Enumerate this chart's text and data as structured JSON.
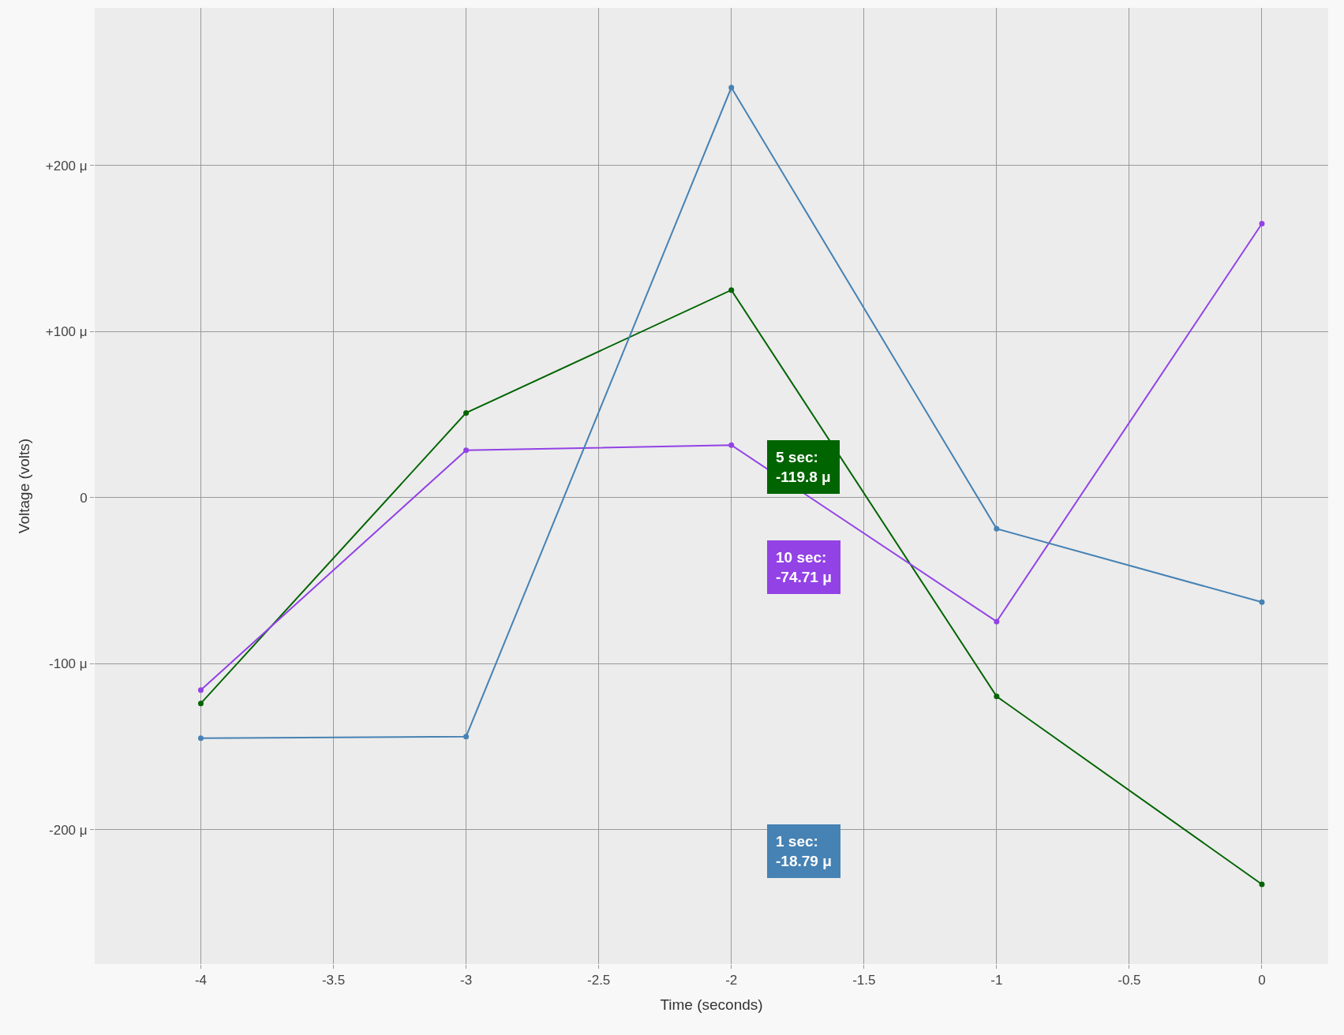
{
  "chart_data": {
    "type": "line",
    "xlabel": "Time (seconds)",
    "ylabel": "Voltage (volts)",
    "x": [
      -4,
      -3,
      -2,
      -1,
      0
    ],
    "series": [
      {
        "color": "#006400",
        "values": [
          -124,
          51,
          125,
          -119.8,
          -233
        ]
      },
      {
        "color": "#9342e6",
        "values": [
          -116,
          28.5,
          31.6,
          -74.71,
          165
        ]
      },
      {
        "color": "#4682b4",
        "values": [
          -145,
          -144,
          247,
          -18.79,
          -63
        ]
      }
    ],
    "xlim": [
      -4.4,
      0.25
    ],
    "xticks": [
      -4,
      -3.5,
      -3,
      -2.5,
      -2,
      -1.5,
      -1,
      -0.5,
      0
    ],
    "ylim": [
      -281,
      295
    ],
    "yticks": [
      {
        "value": -200,
        "label": "-200 μ"
      },
      {
        "value": -100,
        "label": "-100 μ"
      },
      0,
      {
        "value": 100,
        "label": "+100 μ"
      },
      {
        "value": 200,
        "label": "+200 μ"
      }
    ],
    "annotations": [
      "5 sec:\n-119.8 μ",
      "10 sec:\n-74.71 μ",
      "1 sec:\n-18.79 μ"
    ],
    "grid": true,
    "marker": "circle",
    "line_style": "solid",
    "legend": false
  }
}
